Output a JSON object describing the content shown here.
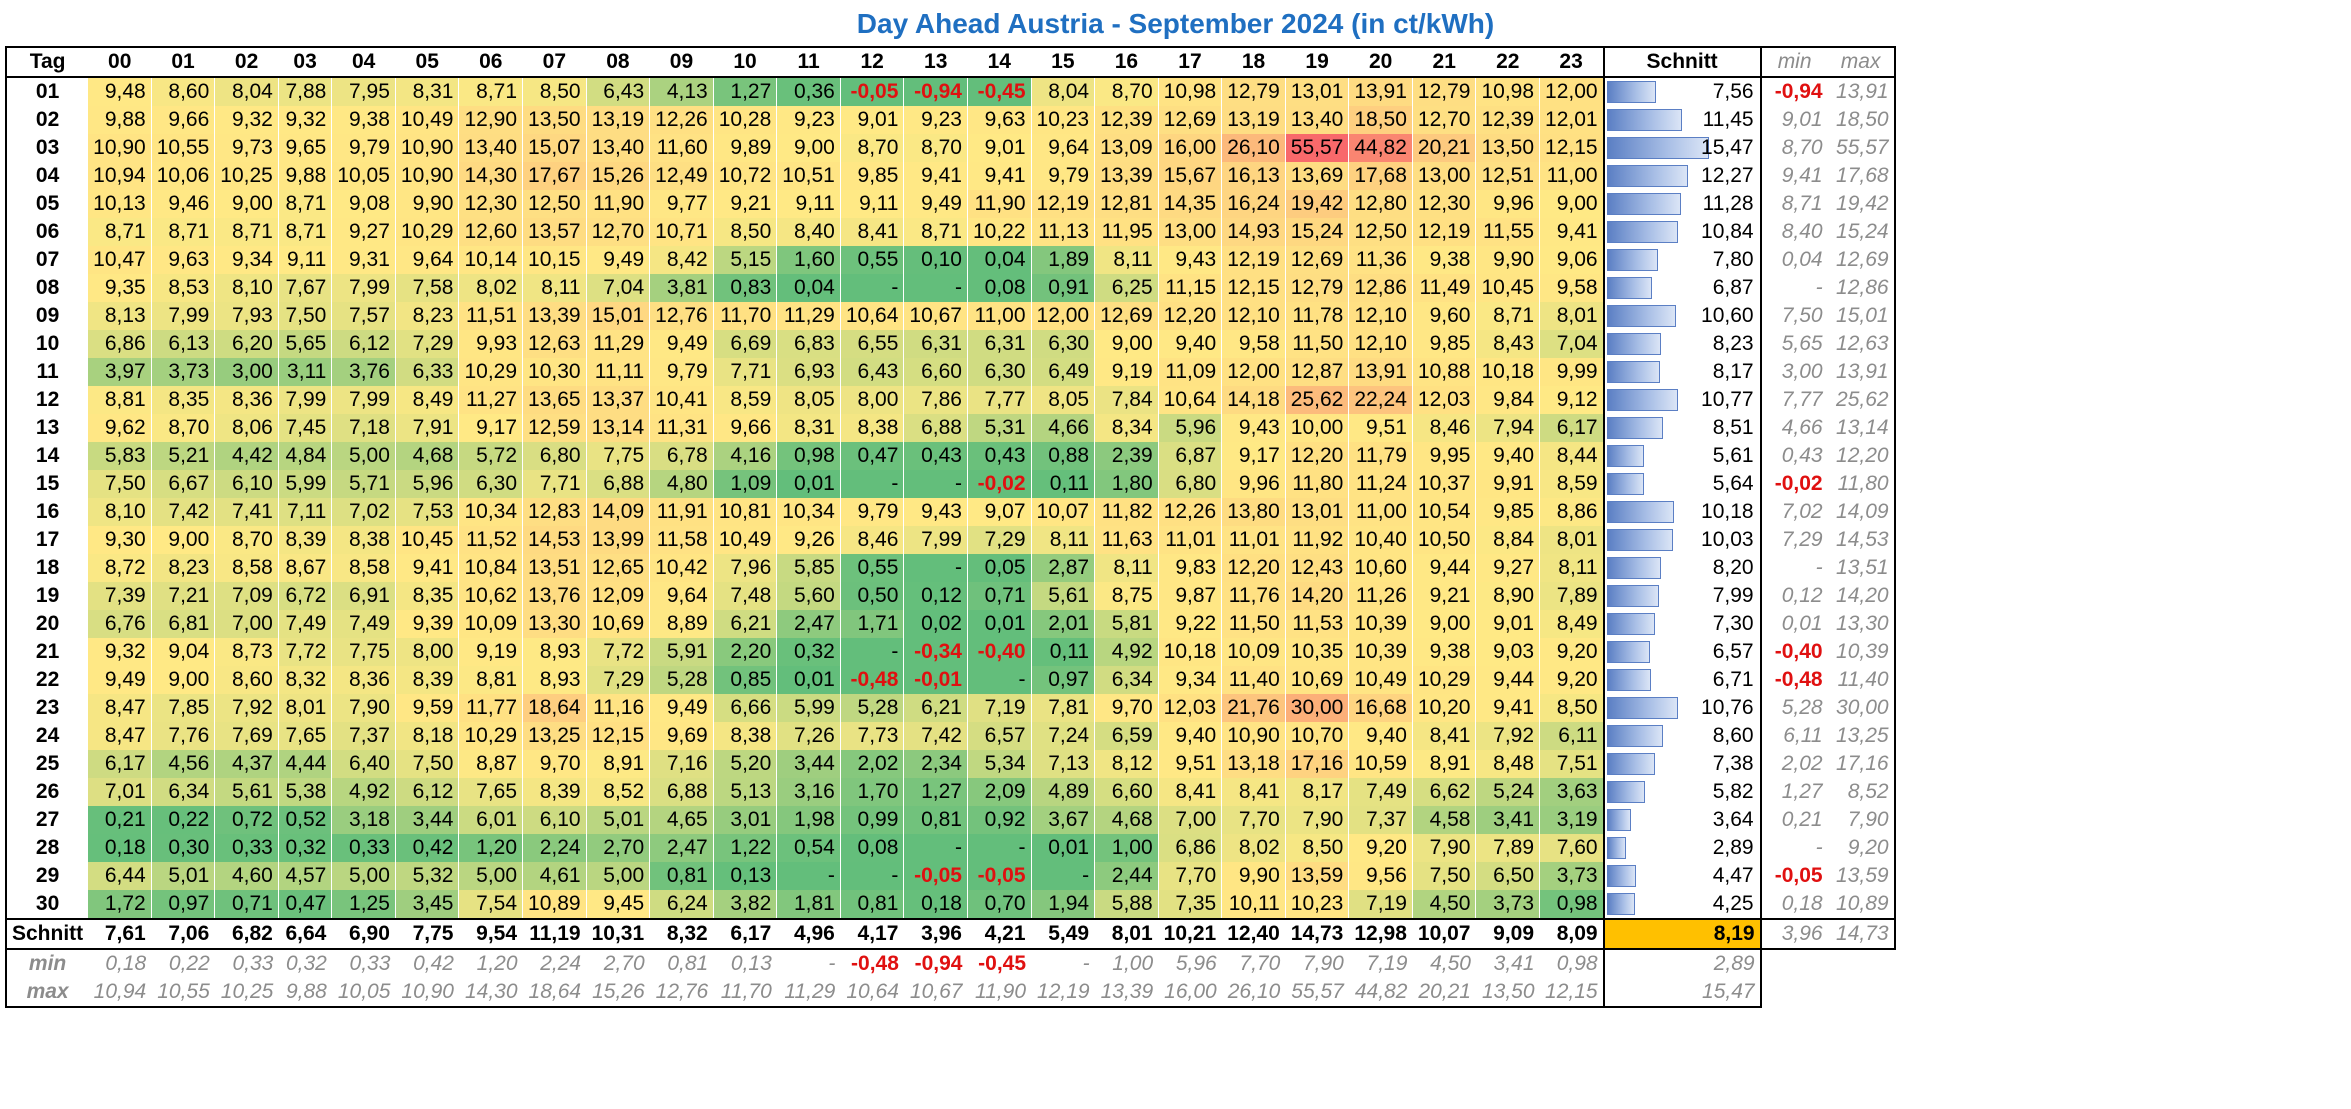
{
  "title": "Day Ahead Austria - September 2024 (in ct/kWh)",
  "headers": {
    "tag": "Tag",
    "hours": [
      "00",
      "01",
      "02",
      "03",
      "04",
      "05",
      "06",
      "07",
      "08",
      "09",
      "10",
      "11",
      "12",
      "13",
      "14",
      "15",
      "16",
      "17",
      "18",
      "19",
      "20",
      "21",
      "22",
      "23"
    ],
    "schnitt": "Schnitt",
    "min": "min",
    "max": "max"
  },
  "chart_data": {
    "type": "heatmap",
    "title": "Day Ahead Austria - September 2024 (in ct/kWh)",
    "rows": [
      {
        "tag": "01",
        "values": [
          "9,48",
          "8,60",
          "8,04",
          "7,88",
          "7,95",
          "8,31",
          "8,71",
          "8,50",
          "6,43",
          "4,13",
          "1,27",
          "0,36",
          "-0,05",
          "-0,94",
          "-0,45",
          "8,04",
          "8,70",
          "10,98",
          "12,79",
          "13,01",
          "13,91",
          "12,79",
          "10,98",
          "12,00"
        ],
        "schnitt": "7,56",
        "min": "-0,94",
        "max": "13,91"
      },
      {
        "tag": "02",
        "values": [
          "9,88",
          "9,66",
          "9,32",
          "9,32",
          "9,38",
          "10,49",
          "12,90",
          "13,50",
          "13,19",
          "12,26",
          "10,28",
          "9,23",
          "9,01",
          "9,23",
          "9,63",
          "10,23",
          "12,39",
          "12,69",
          "13,19",
          "13,40",
          "18,50",
          "12,70",
          "12,39",
          "12,01"
        ],
        "schnitt": "11,45",
        "min": "9,01",
        "max": "18,50"
      },
      {
        "tag": "03",
        "values": [
          "10,90",
          "10,55",
          "9,73",
          "9,65",
          "9,79",
          "10,90",
          "13,40",
          "15,07",
          "13,40",
          "11,60",
          "9,89",
          "9,00",
          "8,70",
          "8,70",
          "9,01",
          "9,64",
          "13,09",
          "16,00",
          "26,10",
          "55,57",
          "44,82",
          "20,21",
          "13,50",
          "12,15"
        ],
        "schnitt": "15,47",
        "min": "8,70",
        "max": "55,57"
      },
      {
        "tag": "04",
        "values": [
          "10,94",
          "10,06",
          "10,25",
          "9,88",
          "10,05",
          "10,90",
          "14,30",
          "17,67",
          "15,26",
          "12,49",
          "10,72",
          "10,51",
          "9,85",
          "9,41",
          "9,41",
          "9,79",
          "13,39",
          "15,67",
          "16,13",
          "13,69",
          "17,68",
          "13,00",
          "12,51",
          "11,00"
        ],
        "schnitt": "12,27",
        "min": "9,41",
        "max": "17,68"
      },
      {
        "tag": "05",
        "values": [
          "10,13",
          "9,46",
          "9,00",
          "8,71",
          "9,08",
          "9,90",
          "12,30",
          "12,50",
          "11,90",
          "9,77",
          "9,21",
          "9,11",
          "9,11",
          "9,49",
          "11,90",
          "12,19",
          "12,81",
          "14,35",
          "16,24",
          "19,42",
          "12,80",
          "12,30",
          "9,96",
          "9,00"
        ],
        "schnitt": "11,28",
        "min": "8,71",
        "max": "19,42"
      },
      {
        "tag": "06",
        "values": [
          "8,71",
          "8,71",
          "8,71",
          "8,71",
          "9,27",
          "10,29",
          "12,60",
          "13,57",
          "12,70",
          "10,71",
          "8,50",
          "8,40",
          "8,41",
          "8,71",
          "10,22",
          "11,13",
          "11,95",
          "13,00",
          "14,93",
          "15,24",
          "12,50",
          "12,19",
          "11,55",
          "9,41"
        ],
        "schnitt": "10,84",
        "min": "8,40",
        "max": "15,24"
      },
      {
        "tag": "07",
        "values": [
          "10,47",
          "9,63",
          "9,34",
          "9,11",
          "9,31",
          "9,64",
          "10,14",
          "10,15",
          "9,49",
          "8,42",
          "5,15",
          "1,60",
          "0,55",
          "0,10",
          "0,04",
          "1,89",
          "8,11",
          "9,43",
          "12,19",
          "12,69",
          "11,36",
          "9,38",
          "9,90",
          "9,06"
        ],
        "schnitt": "7,80",
        "min": "0,04",
        "max": "12,69"
      },
      {
        "tag": "08",
        "values": [
          "9,35",
          "8,53",
          "8,10",
          "7,67",
          "7,99",
          "7,58",
          "8,02",
          "8,11",
          "7,04",
          "3,81",
          "0,83",
          "0,04",
          "-",
          "-",
          "0,08",
          "0,91",
          "6,25",
          "11,15",
          "12,15",
          "12,79",
          "12,86",
          "11,49",
          "10,45",
          "9,58"
        ],
        "schnitt": "6,87",
        "min": "-",
        "max": "12,86"
      },
      {
        "tag": "09",
        "values": [
          "8,13",
          "7,99",
          "7,93",
          "7,50",
          "7,57",
          "8,23",
          "11,51",
          "13,39",
          "15,01",
          "12,76",
          "11,70",
          "11,29",
          "10,64",
          "10,67",
          "11,00",
          "12,00",
          "12,69",
          "12,20",
          "12,10",
          "11,78",
          "12,10",
          "9,60",
          "8,71",
          "8,01"
        ],
        "schnitt": "10,60",
        "min": "7,50",
        "max": "15,01"
      },
      {
        "tag": "10",
        "values": [
          "6,86",
          "6,13",
          "6,20",
          "5,65",
          "6,12",
          "7,29",
          "9,93",
          "12,63",
          "11,29",
          "9,49",
          "6,69",
          "6,83",
          "6,55",
          "6,31",
          "6,31",
          "6,30",
          "9,00",
          "9,40",
          "9,58",
          "11,50",
          "12,10",
          "9,85",
          "8,43",
          "7,04"
        ],
        "schnitt": "8,23",
        "min": "5,65",
        "max": "12,63"
      },
      {
        "tag": "11",
        "values": [
          "3,97",
          "3,73",
          "3,00",
          "3,11",
          "3,76",
          "6,33",
          "10,29",
          "10,30",
          "11,11",
          "9,79",
          "7,71",
          "6,93",
          "6,43",
          "6,60",
          "6,30",
          "6,49",
          "9,19",
          "11,09",
          "12,00",
          "12,87",
          "13,91",
          "10,88",
          "10,18",
          "9,99"
        ],
        "schnitt": "8,17",
        "min": "3,00",
        "max": "13,91"
      },
      {
        "tag": "12",
        "values": [
          "8,81",
          "8,35",
          "8,36",
          "7,99",
          "7,99",
          "8,49",
          "11,27",
          "13,65",
          "13,37",
          "10,41",
          "8,59",
          "8,05",
          "8,00",
          "7,86",
          "7,77",
          "8,05",
          "7,84",
          "10,64",
          "14,18",
          "25,62",
          "22,24",
          "12,03",
          "9,84",
          "9,12"
        ],
        "schnitt": "10,77",
        "min": "7,77",
        "max": "25,62"
      },
      {
        "tag": "13",
        "values": [
          "9,62",
          "8,70",
          "8,06",
          "7,45",
          "7,18",
          "7,91",
          "9,17",
          "12,59",
          "13,14",
          "11,31",
          "9,66",
          "8,31",
          "8,38",
          "6,88",
          "5,31",
          "4,66",
          "8,34",
          "5,96",
          "9,43",
          "10,00",
          "9,51",
          "8,46",
          "7,94",
          "6,17"
        ],
        "schnitt": "8,51",
        "min": "4,66",
        "max": "13,14"
      },
      {
        "tag": "14",
        "values": [
          "5,83",
          "5,21",
          "4,42",
          "4,84",
          "5,00",
          "4,68",
          "5,72",
          "6,80",
          "7,75",
          "6,78",
          "4,16",
          "0,98",
          "0,47",
          "0,43",
          "0,43",
          "0,88",
          "2,39",
          "6,87",
          "9,17",
          "12,20",
          "11,79",
          "9,95",
          "9,40",
          "8,44"
        ],
        "schnitt": "5,61",
        "min": "0,43",
        "max": "12,20"
      },
      {
        "tag": "15",
        "values": [
          "7,50",
          "6,67",
          "6,10",
          "5,99",
          "5,71",
          "5,96",
          "6,30",
          "7,71",
          "6,88",
          "4,80",
          "1,09",
          "0,01",
          "-",
          "-",
          "-0,02",
          "0,11",
          "1,80",
          "6,80",
          "9,96",
          "11,80",
          "11,24",
          "10,37",
          "9,91",
          "8,59"
        ],
        "schnitt": "5,64",
        "min": "-0,02",
        "max": "11,80"
      },
      {
        "tag": "16",
        "values": [
          "8,10",
          "7,42",
          "7,41",
          "7,11",
          "7,02",
          "7,53",
          "10,34",
          "12,83",
          "14,09",
          "11,91",
          "10,81",
          "10,34",
          "9,79",
          "9,43",
          "9,07",
          "10,07",
          "11,82",
          "12,26",
          "13,80",
          "13,01",
          "11,00",
          "10,54",
          "9,85",
          "8,86"
        ],
        "schnitt": "10,18",
        "min": "7,02",
        "max": "14,09"
      },
      {
        "tag": "17",
        "values": [
          "9,30",
          "9,00",
          "8,70",
          "8,39",
          "8,38",
          "10,45",
          "11,52",
          "14,53",
          "13,99",
          "11,58",
          "10,49",
          "9,26",
          "8,46",
          "7,99",
          "7,29",
          "8,11",
          "11,63",
          "11,01",
          "11,01",
          "11,92",
          "10,40",
          "10,50",
          "8,84",
          "8,01"
        ],
        "schnitt": "10,03",
        "min": "7,29",
        "max": "14,53"
      },
      {
        "tag": "18",
        "values": [
          "8,72",
          "8,23",
          "8,58",
          "8,67",
          "8,58",
          "9,41",
          "10,84",
          "13,51",
          "12,65",
          "10,42",
          "7,96",
          "5,85",
          "0,55",
          "-",
          "0,05",
          "2,87",
          "8,11",
          "9,83",
          "12,20",
          "12,43",
          "10,60",
          "9,44",
          "9,27",
          "8,11"
        ],
        "schnitt": "8,20",
        "min": "-",
        "max": "13,51"
      },
      {
        "tag": "19",
        "values": [
          "7,39",
          "7,21",
          "7,09",
          "6,72",
          "6,91",
          "8,35",
          "10,62",
          "13,76",
          "12,09",
          "9,64",
          "7,48",
          "5,60",
          "0,50",
          "0,12",
          "0,71",
          "5,61",
          "8,75",
          "9,87",
          "11,76",
          "14,20",
          "11,26",
          "9,21",
          "8,90",
          "7,89"
        ],
        "schnitt": "7,99",
        "min": "0,12",
        "max": "14,20"
      },
      {
        "tag": "20",
        "values": [
          "6,76",
          "6,81",
          "7,00",
          "7,49",
          "7,49",
          "9,39",
          "10,09",
          "13,30",
          "10,69",
          "8,89",
          "6,21",
          "2,47",
          "1,71",
          "0,02",
          "0,01",
          "2,01",
          "5,81",
          "9,22",
          "11,50",
          "11,53",
          "10,39",
          "9,00",
          "9,01",
          "8,49"
        ],
        "schnitt": "7,30",
        "min": "0,01",
        "max": "13,30"
      },
      {
        "tag": "21",
        "values": [
          "9,32",
          "9,04",
          "8,73",
          "7,72",
          "7,75",
          "8,00",
          "9,19",
          "8,93",
          "7,72",
          "5,91",
          "2,20",
          "0,32",
          "-",
          "-0,34",
          "-0,40",
          "0,11",
          "4,92",
          "10,18",
          "10,09",
          "10,35",
          "10,39",
          "9,38",
          "9,03",
          "9,20"
        ],
        "schnitt": "6,57",
        "min": "-0,40",
        "max": "10,39"
      },
      {
        "tag": "22",
        "values": [
          "9,49",
          "9,00",
          "8,60",
          "8,32",
          "8,36",
          "8,39",
          "8,81",
          "8,93",
          "7,29",
          "5,28",
          "0,85",
          "0,01",
          "-0,48",
          "-0,01",
          "-",
          "0,97",
          "6,34",
          "9,34",
          "11,40",
          "10,69",
          "10,49",
          "10,29",
          "9,44",
          "9,20"
        ],
        "schnitt": "6,71",
        "min": "-0,48",
        "max": "11,40"
      },
      {
        "tag": "23",
        "values": [
          "8,47",
          "7,85",
          "7,92",
          "8,01",
          "7,90",
          "9,59",
          "11,77",
          "18,64",
          "11,16",
          "9,49",
          "6,66",
          "5,99",
          "5,28",
          "6,21",
          "7,19",
          "7,81",
          "9,70",
          "12,03",
          "21,76",
          "30,00",
          "16,68",
          "10,20",
          "9,41",
          "8,50"
        ],
        "schnitt": "10,76",
        "min": "5,28",
        "max": "30,00"
      },
      {
        "tag": "24",
        "values": [
          "8,47",
          "7,76",
          "7,69",
          "7,65",
          "7,37",
          "8,18",
          "10,29",
          "13,25",
          "12,15",
          "9,69",
          "8,38",
          "7,26",
          "7,73",
          "7,42",
          "6,57",
          "7,24",
          "6,59",
          "9,40",
          "10,90",
          "10,70",
          "9,40",
          "8,41",
          "7,92",
          "6,11"
        ],
        "schnitt": "8,60",
        "min": "6,11",
        "max": "13,25"
      },
      {
        "tag": "25",
        "values": [
          "6,17",
          "4,56",
          "4,37",
          "4,44",
          "6,40",
          "7,50",
          "8,87",
          "9,70",
          "8,91",
          "7,16",
          "5,20",
          "3,44",
          "2,02",
          "2,34",
          "5,34",
          "7,13",
          "8,12",
          "9,51",
          "13,18",
          "17,16",
          "10,59",
          "8,91",
          "8,48",
          "7,51"
        ],
        "schnitt": "7,38",
        "min": "2,02",
        "max": "17,16"
      },
      {
        "tag": "26",
        "values": [
          "7,01",
          "6,34",
          "5,61",
          "5,38",
          "4,92",
          "6,12",
          "7,65",
          "8,39",
          "8,52",
          "6,88",
          "5,13",
          "3,16",
          "1,70",
          "1,27",
          "2,09",
          "4,89",
          "6,60",
          "8,41",
          "8,41",
          "8,17",
          "7,49",
          "6,62",
          "5,24",
          "3,63"
        ],
        "schnitt": "5,82",
        "min": "1,27",
        "max": "8,52"
      },
      {
        "tag": "27",
        "values": [
          "0,21",
          "0,22",
          "0,72",
          "0,52",
          "3,18",
          "3,44",
          "6,01",
          "6,10",
          "5,01",
          "4,65",
          "3,01",
          "1,98",
          "0,99",
          "0,81",
          "0,92",
          "3,67",
          "4,68",
          "7,00",
          "7,70",
          "7,90",
          "7,37",
          "4,58",
          "3,41",
          "3,19"
        ],
        "schnitt": "3,64",
        "min": "0,21",
        "max": "7,90"
      },
      {
        "tag": "28",
        "values": [
          "0,18",
          "0,30",
          "0,33",
          "0,32",
          "0,33",
          "0,42",
          "1,20",
          "2,24",
          "2,70",
          "2,47",
          "1,22",
          "0,54",
          "0,08",
          "-",
          "-",
          "0,01",
          "1,00",
          "6,86",
          "8,02",
          "8,50",
          "9,20",
          "7,90",
          "7,89",
          "7,60"
        ],
        "schnitt": "2,89",
        "min": "-",
        "max": "9,20"
      },
      {
        "tag": "29",
        "values": [
          "6,44",
          "5,01",
          "4,60",
          "4,57",
          "5,00",
          "5,32",
          "5,00",
          "4,61",
          "5,00",
          "0,81",
          "0,13",
          "-",
          "-",
          "-0,05",
          "-0,05",
          "-",
          "2,44",
          "7,70",
          "9,90",
          "13,59",
          "9,56",
          "7,50",
          "6,50",
          "3,73"
        ],
        "schnitt": "4,47",
        "min": "-0,05",
        "max": "13,59"
      },
      {
        "tag": "30",
        "values": [
          "1,72",
          "0,97",
          "0,71",
          "0,47",
          "1,25",
          "3,45",
          "7,54",
          "10,89",
          "9,45",
          "6,24",
          "3,82",
          "1,81",
          "0,81",
          "0,18",
          "0,70",
          "1,94",
          "5,88",
          "7,35",
          "10,11",
          "10,23",
          "7,19",
          "4,50",
          "3,73",
          "0,98"
        ],
        "schnitt": "4,25",
        "min": "0,18",
        "max": "10,89"
      }
    ],
    "summary": {
      "schnitt": {
        "label": "Schnitt",
        "values": [
          "7,61",
          "7,06",
          "6,82",
          "6,64",
          "6,90",
          "7,75",
          "9,54",
          "11,19",
          "10,31",
          "8,32",
          "6,17",
          "4,96",
          "4,17",
          "3,96",
          "4,21",
          "5,49",
          "8,01",
          "10,21",
          "12,40",
          "14,73",
          "12,98",
          "10,07",
          "9,09",
          "8,09"
        ],
        "total": "8,19",
        "min": "3,96",
        "max": "14,73"
      },
      "min": {
        "label": "min",
        "values": [
          "0,18",
          "0,22",
          "0,33",
          "0,32",
          "0,33",
          "0,42",
          "1,20",
          "2,24",
          "2,70",
          "0,81",
          "0,13",
          "-",
          "-0,48",
          "-0,94",
          "-0,45",
          "-",
          "1,00",
          "5,96",
          "7,70",
          "7,90",
          "7,19",
          "4,50",
          "3,41",
          "0,98"
        ],
        "total": "2,89"
      },
      "max": {
        "label": "max",
        "values": [
          "10,94",
          "10,55",
          "10,25",
          "9,88",
          "10,05",
          "10,90",
          "14,30",
          "18,64",
          "15,26",
          "12,76",
          "11,70",
          "11,29",
          "10,64",
          "10,67",
          "11,90",
          "12,19",
          "13,39",
          "16,00",
          "26,10",
          "55,57",
          "44,82",
          "20,21",
          "13,50",
          "12,15"
        ],
        "total": "15,47"
      }
    },
    "color_scale": {
      "low": "#63be7b",
      "mid": "#ffe985",
      "high": "#f8696b"
    },
    "average_bar_max": "15,47"
  }
}
